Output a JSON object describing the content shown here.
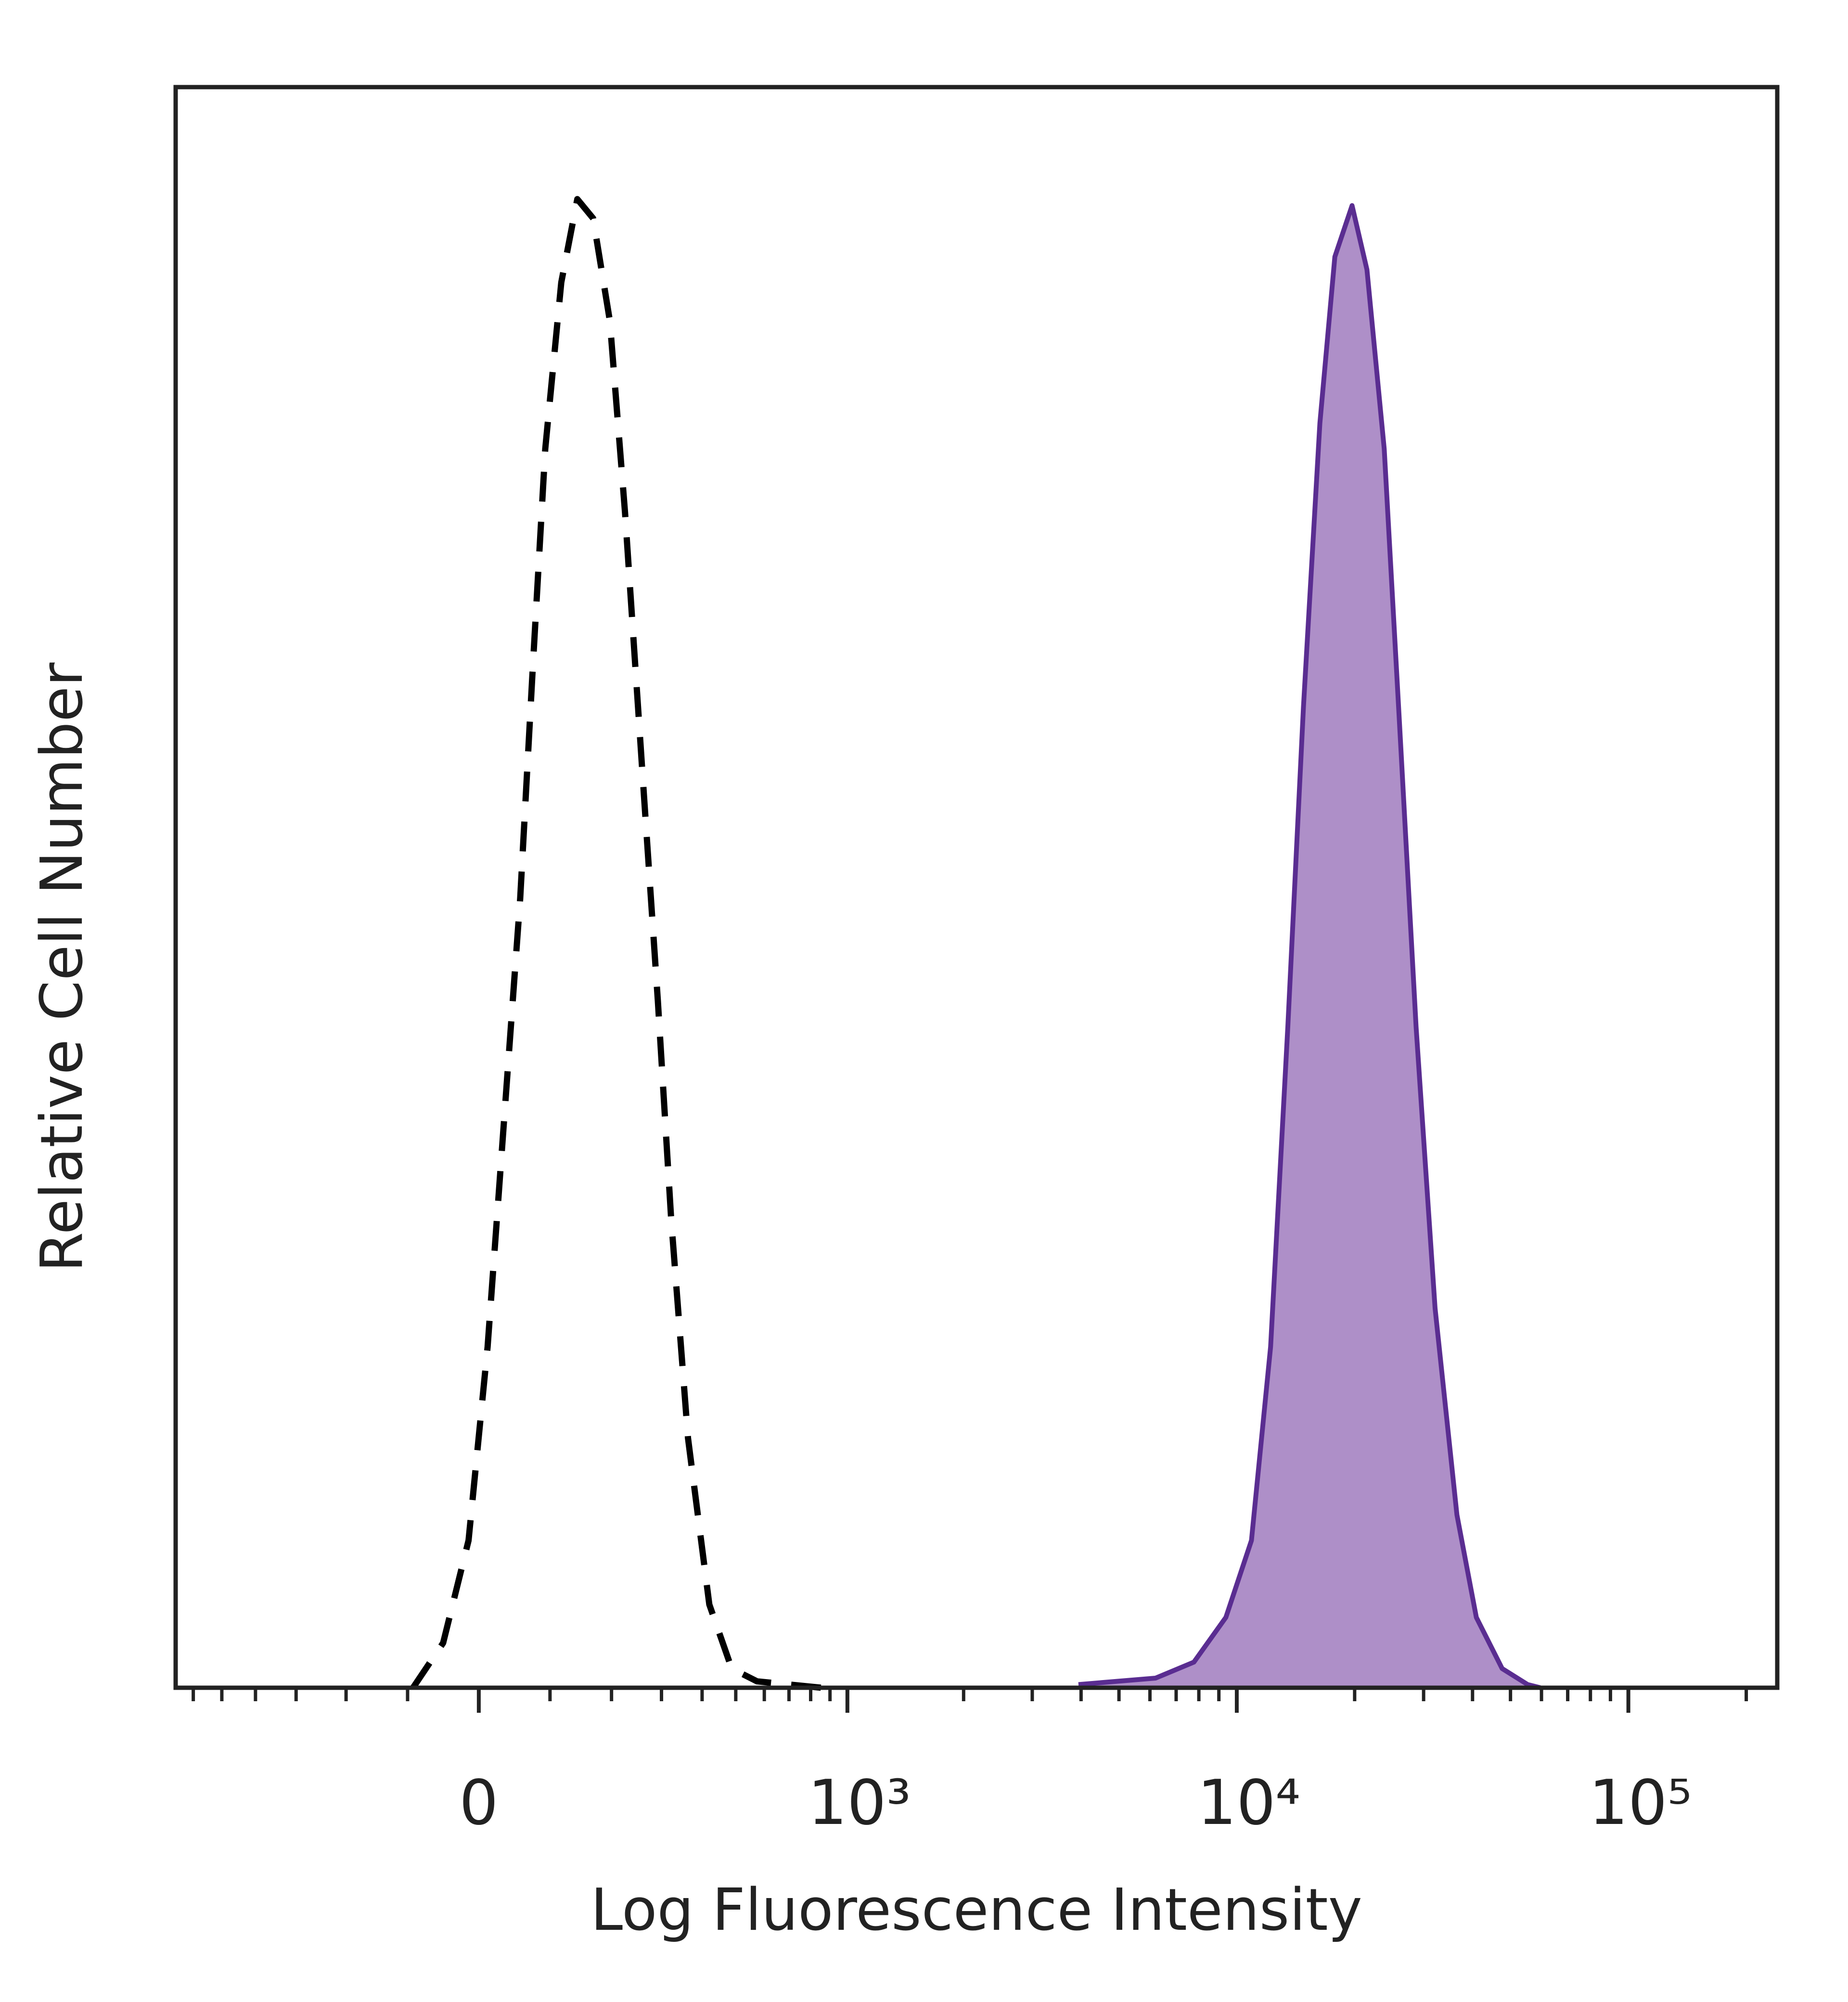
{
  "chart_data": {
    "type": "histogram-overlay",
    "x_label": "Log Fluorescence Intensity",
    "y_label": "Relative Cell Number",
    "xscale": "biexponential",
    "xlim": [
      -670,
      240000
    ],
    "ylim": [
      0,
      100
    ],
    "xticks": [
      0,
      {
        "value": 1000,
        "label": "10³"
      },
      {
        "value": 10000,
        "label": "10⁴"
      },
      {
        "value": 100000,
        "label": "10⁵"
      }
    ],
    "xminorticks": [
      -600,
      -500,
      -400,
      -300,
      -200,
      -100,
      100,
      200,
      300,
      400,
      500,
      600,
      700,
      800,
      900,
      2000,
      3000,
      4000,
      5000,
      6000,
      7000,
      8000,
      9000,
      20000,
      30000,
      40000,
      50000,
      60000,
      70000,
      80000,
      90000,
      200000
    ],
    "series": [
      {
        "color": "#000000",
        "linestyle": "dashed",
        "x": [
          -92,
          -49,
          -14,
          12,
          35,
          57,
          75,
          93,
          117,
          142,
          168,
          197,
          225,
          259,
          292,
          322,
          363,
          420,
          487,
          573,
          854
        ],
        "values": [
          0,
          2.8,
          9.2,
          21.3,
          35.7,
          49.3,
          63.8,
          77.4,
          87.8,
          93.0,
          91.8,
          85.4,
          73.4,
          57.3,
          42.9,
          29.3,
          15.6,
          5.2,
          1.2,
          0.4,
          0
        ]
      },
      {
        "color": "#5a2d91",
        "fill_color": "#ae8fc8",
        "linestyle": "solid",
        "x": [
          3940,
          6200,
          7770,
          9380,
          10900,
          12200,
          13500,
          14800,
          16300,
          17800,
          19700,
          21500,
          23800,
          26000,
          28700,
          32100,
          36500,
          40900,
          47600,
          55300,
          59600
        ],
        "values": [
          0.2,
          0.6,
          1.6,
          4.4,
          9.2,
          21.3,
          41.3,
          61.3,
          79.0,
          89.4,
          92.6,
          88.6,
          77.4,
          60.5,
          41.3,
          23.7,
          10.8,
          4.4,
          1.2,
          0.2,
          0
        ]
      }
    ]
  }
}
